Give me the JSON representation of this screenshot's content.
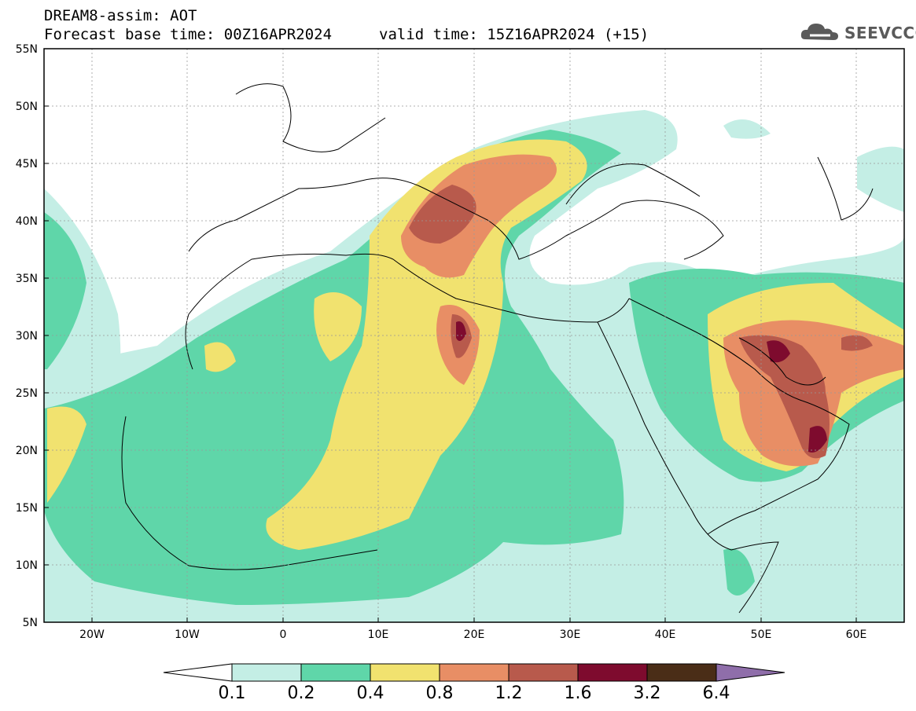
{
  "title": {
    "line1": "DREAM8-assim: AOT",
    "base_time": "Forecast base time: 00Z16APR2024",
    "valid_time": "valid time: 15Z16APR2024 (+15)"
  },
  "logo": {
    "text": "SEEVCCC",
    "icon": "cloud-icon"
  },
  "map": {
    "lat_labels": [
      "55N",
      "50N",
      "45N",
      "40N",
      "35N",
      "30N",
      "25N",
      "20N",
      "15N",
      "10N",
      "5N"
    ],
    "lon_labels": [
      "20W",
      "10W",
      "0",
      "10E",
      "20E",
      "30E",
      "40E",
      "50E",
      "60E"
    ]
  },
  "colorbar": {
    "levels": [
      "0.1",
      "0.2",
      "0.4",
      "0.8",
      "1.2",
      "1.6",
      "3.2",
      "6.4"
    ],
    "colors": [
      "#c4eee5",
      "#5fd6a9",
      "#f1e26f",
      "#e88e65",
      "#b85a4c",
      "#7e0b2e",
      "#4a2d17",
      "#8f6eaa"
    ]
  }
}
